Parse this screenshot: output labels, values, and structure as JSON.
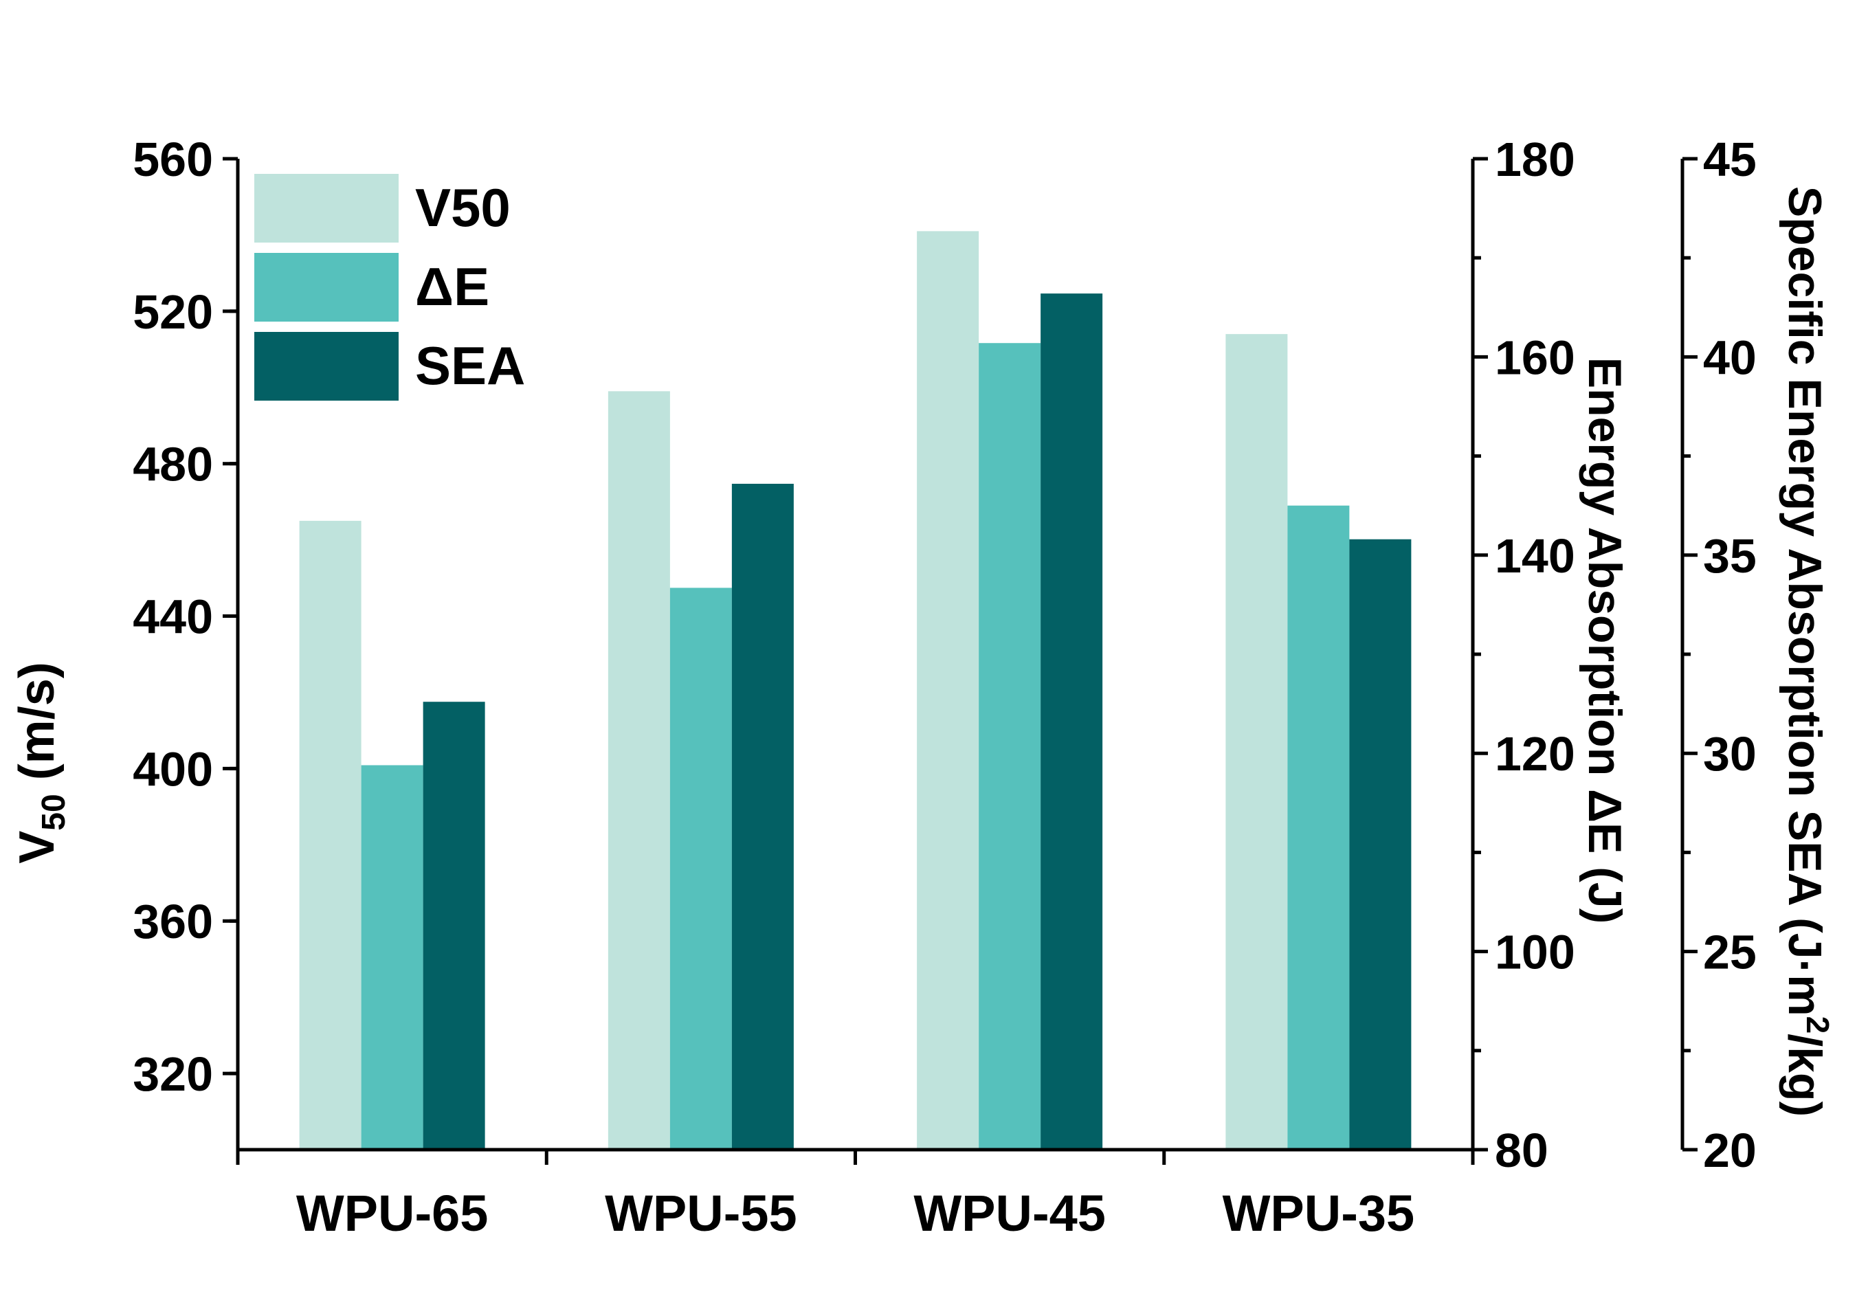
{
  "chart_data": {
    "type": "bar",
    "categories": [
      "WPU-65",
      "WPU-55",
      "WPU-45",
      "WPU-35"
    ],
    "series": [
      {
        "name": "V50",
        "axis": "left",
        "color": "#bfe3dc",
        "values": [
          465,
          499,
          541,
          514
        ]
      },
      {
        "name": "ΔE",
        "axis": "right1",
        "color": "#56c1bc",
        "values": [
          118.8,
          136.7,
          161.4,
          145
        ]
      },
      {
        "name": "SEA",
        "axis": "right2",
        "color": "#036064",
        "values": [
          31.3,
          36.8,
          41.6,
          35.4
        ]
      }
    ],
    "axes": {
      "left": {
        "label_main": "V",
        "label_sub": "50",
        "label_rest": " (m/s)",
        "min": 300,
        "max": 560,
        "ticks": [
          320,
          360,
          400,
          440,
          480,
          520,
          560
        ]
      },
      "right1": {
        "label": "Energy Absorption ΔE (J)",
        "min": 80,
        "max": 180,
        "ticks": [
          80,
          100,
          120,
          140,
          160,
          180
        ]
      },
      "right2": {
        "label_main": "Specific Energy Absorption SEA (J·m",
        "label_sup": "2",
        "label_rest": "/kg)",
        "min": 20,
        "max": 45,
        "ticks": [
          20,
          25,
          30,
          35,
          40,
          45
        ]
      }
    },
    "legend": {
      "placement": "top-left",
      "entries": [
        "V50",
        "ΔE",
        "SEA"
      ]
    },
    "grid": false
  }
}
